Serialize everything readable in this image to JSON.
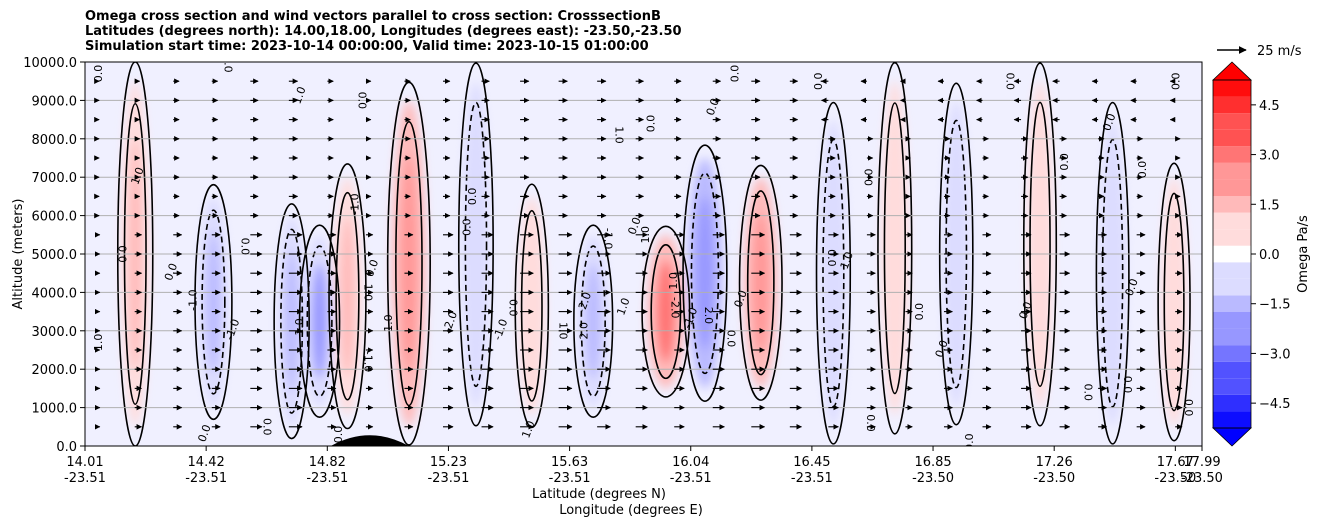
{
  "chart_data": {
    "type": "contour-cross-section",
    "title_lines": [
      "Omega cross section and wind vectors parallel to cross section: CrosssectionB",
      "Latitudes (degrees north): 14.00,18.00, Longitudes (degrees east): -23.50,-23.50",
      "Simulation start time: 2023-10-14 00:00:00, Valid time: 2023-10-15 01:00:00"
    ],
    "ylabel": "Altitude (meters)",
    "xlabel_lat": "Latitude (degrees N)",
    "xlabel_lon": "Longitude (degrees E)",
    "ylim": [
      0,
      10000
    ],
    "y_ticks": [
      "0.0",
      "1000.0",
      "2000.0",
      "3000.0",
      "4000.0",
      "5000.0",
      "6000.0",
      "7000.0",
      "8000.0",
      "9000.0",
      "10000.0"
    ],
    "x_ticks": [
      {
        "lat": "14.01",
        "lon": "-23.51"
      },
      {
        "lat": "14.42",
        "lon": "-23.51"
      },
      {
        "lat": "14.82",
        "lon": "-23.51"
      },
      {
        "lat": "15.23",
        "lon": "-23.51"
      },
      {
        "lat": "15.63",
        "lon": "-23.51"
      },
      {
        "lat": "16.04",
        "lon": "-23.51"
      },
      {
        "lat": "16.45",
        "lon": "-23.51"
      },
      {
        "lat": "16.85",
        "lon": "-23.50"
      },
      {
        "lat": "17.26",
        "lon": "-23.50"
      },
      {
        "lat": "17.67",
        "lon": "-23.50"
      },
      {
        "lat": "17.99",
        "lon": "-23.50"
      }
    ],
    "colorbar": {
      "label": "Omega Pa/s",
      "range": [
        -5.25,
        5.25
      ],
      "ticks": [
        "−4.5",
        "−3.0",
        "−1.5",
        "0.0",
        "1.5",
        "3.0",
        "4.5"
      ],
      "positive_color": "#ff0000",
      "negative_color": "#0000ff"
    },
    "vector_key": "25 m/s",
    "omega_features": [
      {
        "x_frac": 0.045,
        "alt_low": 500,
        "alt_high": 9500,
        "omega": 1.2
      },
      {
        "x_frac": 0.115,
        "alt_low": 1000,
        "alt_high": 6500,
        "omega": -1.5
      },
      {
        "x_frac": 0.185,
        "alt_low": 500,
        "alt_high": 6000,
        "omega": -1.2
      },
      {
        "x_frac": 0.235,
        "alt_low": 800,
        "alt_high": 7000,
        "omega": 1.5
      },
      {
        "x_frac": 0.21,
        "alt_low": 1000,
        "alt_high": 5500,
        "omega": -2.0
      },
      {
        "x_frac": 0.29,
        "alt_low": 500,
        "alt_high": 9000,
        "omega": 2.4
      },
      {
        "x_frac": 0.35,
        "alt_low": 1000,
        "alt_high": 9500,
        "omega": -1.1
      },
      {
        "x_frac": 0.4,
        "alt_low": 800,
        "alt_high": 6500,
        "omega": 0.9
      },
      {
        "x_frac": 0.455,
        "alt_low": 1000,
        "alt_high": 5500,
        "omega": -1.8
      },
      {
        "x_frac": 0.52,
        "alt_low": 1500,
        "alt_high": 5500,
        "omega": 3.2
      },
      {
        "x_frac": 0.555,
        "alt_low": 1500,
        "alt_high": 7500,
        "omega": -2.6
      },
      {
        "x_frac": 0.605,
        "alt_low": 1500,
        "alt_high": 7000,
        "omega": 2.4
      },
      {
        "x_frac": 0.67,
        "alt_low": 500,
        "alt_high": 8500,
        "omega": -1.0
      },
      {
        "x_frac": 0.725,
        "alt_low": 800,
        "alt_high": 9500,
        "omega": 1.0
      },
      {
        "x_frac": 0.78,
        "alt_low": 1000,
        "alt_high": 9000,
        "omega": -0.9
      },
      {
        "x_frac": 0.855,
        "alt_low": 1000,
        "alt_high": 9500,
        "omega": 0.8
      },
      {
        "x_frac": 0.92,
        "alt_low": 500,
        "alt_high": 8500,
        "omega": -0.8
      },
      {
        "x_frac": 0.975,
        "alt_low": 500,
        "alt_high": 7000,
        "omega": 0.7
      }
    ],
    "contour_labels": [
      {
        "text": "0.0",
        "x_frac": 0.015,
        "alt": 9700
      },
      {
        "text": "1.0",
        "x_frac": 0.125,
        "alt": 9950
      },
      {
        "text": "1.0",
        "x_frac": 0.05,
        "alt": 7000
      },
      {
        "text": "1.0",
        "x_frac": 0.015,
        "alt": 2700
      },
      {
        "text": "0.0",
        "x_frac": 0.03,
        "alt": 5000
      },
      {
        "text": "0.0",
        "x_frac": 0.08,
        "alt": 4500
      },
      {
        "text": "-1.0",
        "x_frac": 0.1,
        "alt": 3800
      },
      {
        "text": "0.0",
        "x_frac": 0.14,
        "alt": 5200
      },
      {
        "text": "-1.0",
        "x_frac": 0.135,
        "alt": 3000
      },
      {
        "text": "1.0",
        "x_frac": 0.195,
        "alt": 3100
      },
      {
        "text": "1.0",
        "x_frac": 0.25,
        "alt": 4000
      },
      {
        "text": "1.0",
        "x_frac": 0.195,
        "alt": 9100
      },
      {
        "text": "-1.0",
        "x_frac": 0.245,
        "alt": 6300
      },
      {
        "text": "0.0",
        "x_frac": 0.245,
        "alt": 9000
      },
      {
        "text": "0.0",
        "x_frac": 0.26,
        "alt": 4600
      },
      {
        "text": "1.0",
        "x_frac": 0.275,
        "alt": 3200
      },
      {
        "text": "-1.0",
        "x_frac": 0.25,
        "alt": 2200
      },
      {
        "text": "-2.0",
        "x_frac": 0.33,
        "alt": 3200
      },
      {
        "text": "0.0",
        "x_frac": 0.345,
        "alt": 5700
      },
      {
        "text": "0.0",
        "x_frac": 0.38,
        "alt": 3600
      },
      {
        "text": "-1.0",
        "x_frac": 0.375,
        "alt": 3000
      },
      {
        "text": "0.0",
        "x_frac": 0.35,
        "alt": 6500
      },
      {
        "text": "1.0",
        "x_frac": 0.425,
        "alt": 3000
      },
      {
        "text": "-2.0",
        "x_frac": 0.45,
        "alt": 3700
      },
      {
        "text": "2.0",
        "x_frac": 0.45,
        "alt": 3000
      },
      {
        "text": "1.0",
        "x_frac": 0.475,
        "alt": 8100
      },
      {
        "text": "1.0",
        "x_frac": 0.485,
        "alt": 3600
      },
      {
        "text": "0.0",
        "x_frac": 0.51,
        "alt": 8400
      },
      {
        "text": "-1.0",
        "x_frac": 0.465,
        "alt": 5400
      },
      {
        "text": "0.0",
        "x_frac": 0.495,
        "alt": 5700
      },
      {
        "text": "1.0",
        "x_frac": 0.505,
        "alt": 5500
      },
      {
        "text": "-2.0",
        "x_frac": 0.525,
        "alt": 3600
      },
      {
        "text": "-1.0",
        "x_frac": 0.545,
        "alt": 3300
      },
      {
        "text": "1.0",
        "x_frac": 0.53,
        "alt": 4300
      },
      {
        "text": "2.0",
        "x_frac": 0.555,
        "alt": 3400
      },
      {
        "text": "0.0",
        "x_frac": 0.565,
        "alt": 8800
      },
      {
        "text": "0.0",
        "x_frac": 0.585,
        "alt": 9700
      },
      {
        "text": "0.0",
        "x_frac": 0.575,
        "alt": 2800
      },
      {
        "text": "0.0",
        "x_frac": 0.59,
        "alt": 3800
      },
      {
        "text": "0.0",
        "x_frac": 0.66,
        "alt": 9500
      },
      {
        "text": "0.0",
        "x_frac": 0.665,
        "alt": 4900
      },
      {
        "text": "1.0",
        "x_frac": 0.685,
        "alt": 4800
      },
      {
        "text": "0.0",
        "x_frac": 0.75,
        "alt": 3500
      },
      {
        "text": "0.0",
        "x_frac": 0.7,
        "alt": 600
      },
      {
        "text": "0.0",
        "x_frac": 0.77,
        "alt": 2500
      },
      {
        "text": "0.0",
        "x_frac": 0.795,
        "alt": 100
      },
      {
        "text": "0.0",
        "x_frac": 0.825,
        "alt": 9500
      },
      {
        "text": "0.0",
        "x_frac": 0.845,
        "alt": 3500
      },
      {
        "text": "0.0",
        "x_frac": 0.88,
        "alt": 7400
      },
      {
        "text": "0.0",
        "x_frac": 0.895,
        "alt": 1400
      },
      {
        "text": "0.0",
        "x_frac": 0.92,
        "alt": 8400
      },
      {
        "text": "0.0",
        "x_frac": 0.98,
        "alt": 9500
      },
      {
        "text": "0.0",
        "x_frac": 0.93,
        "alt": 1600
      },
      {
        "text": "0.0",
        "x_frac": 0.94,
        "alt": 4100
      },
      {
        "text": "0.0",
        "x_frac": 0.95,
        "alt": 7200
      },
      {
        "text": "0.0",
        "x_frac": 0.985,
        "alt": 1000
      },
      {
        "text": "0.0",
        "x_frac": 0.11,
        "alt": 300
      },
      {
        "text": "0.0",
        "x_frac": 0.23,
        "alt": 300
      },
      {
        "text": "0.0",
        "x_frac": 0.16,
        "alt": 500
      },
      {
        "text": "1.0",
        "x_frac": 0.4,
        "alt": 400
      },
      {
        "text": "0.0",
        "x_frac": 0.705,
        "alt": 7000
      }
    ],
    "wind_vectors": {
      "direction": "mostly rightward (positive along section)",
      "column_spacing_frac": 0.0345,
      "row_spacing_alt": 500,
      "speed_by_column": [
        1,
        3,
        4,
        4,
        6,
        7,
        4,
        3,
        4,
        5,
        6,
        7,
        7,
        7,
        6,
        5,
        6,
        7,
        6,
        5,
        4,
        3,
        4,
        4,
        5,
        5,
        4,
        4,
        3,
        3,
        4,
        3
      ]
    },
    "terrain": {
      "x_frac_center": 0.255,
      "x_frac_halfwidth": 0.035,
      "peak_alt": 250
    }
  }
}
